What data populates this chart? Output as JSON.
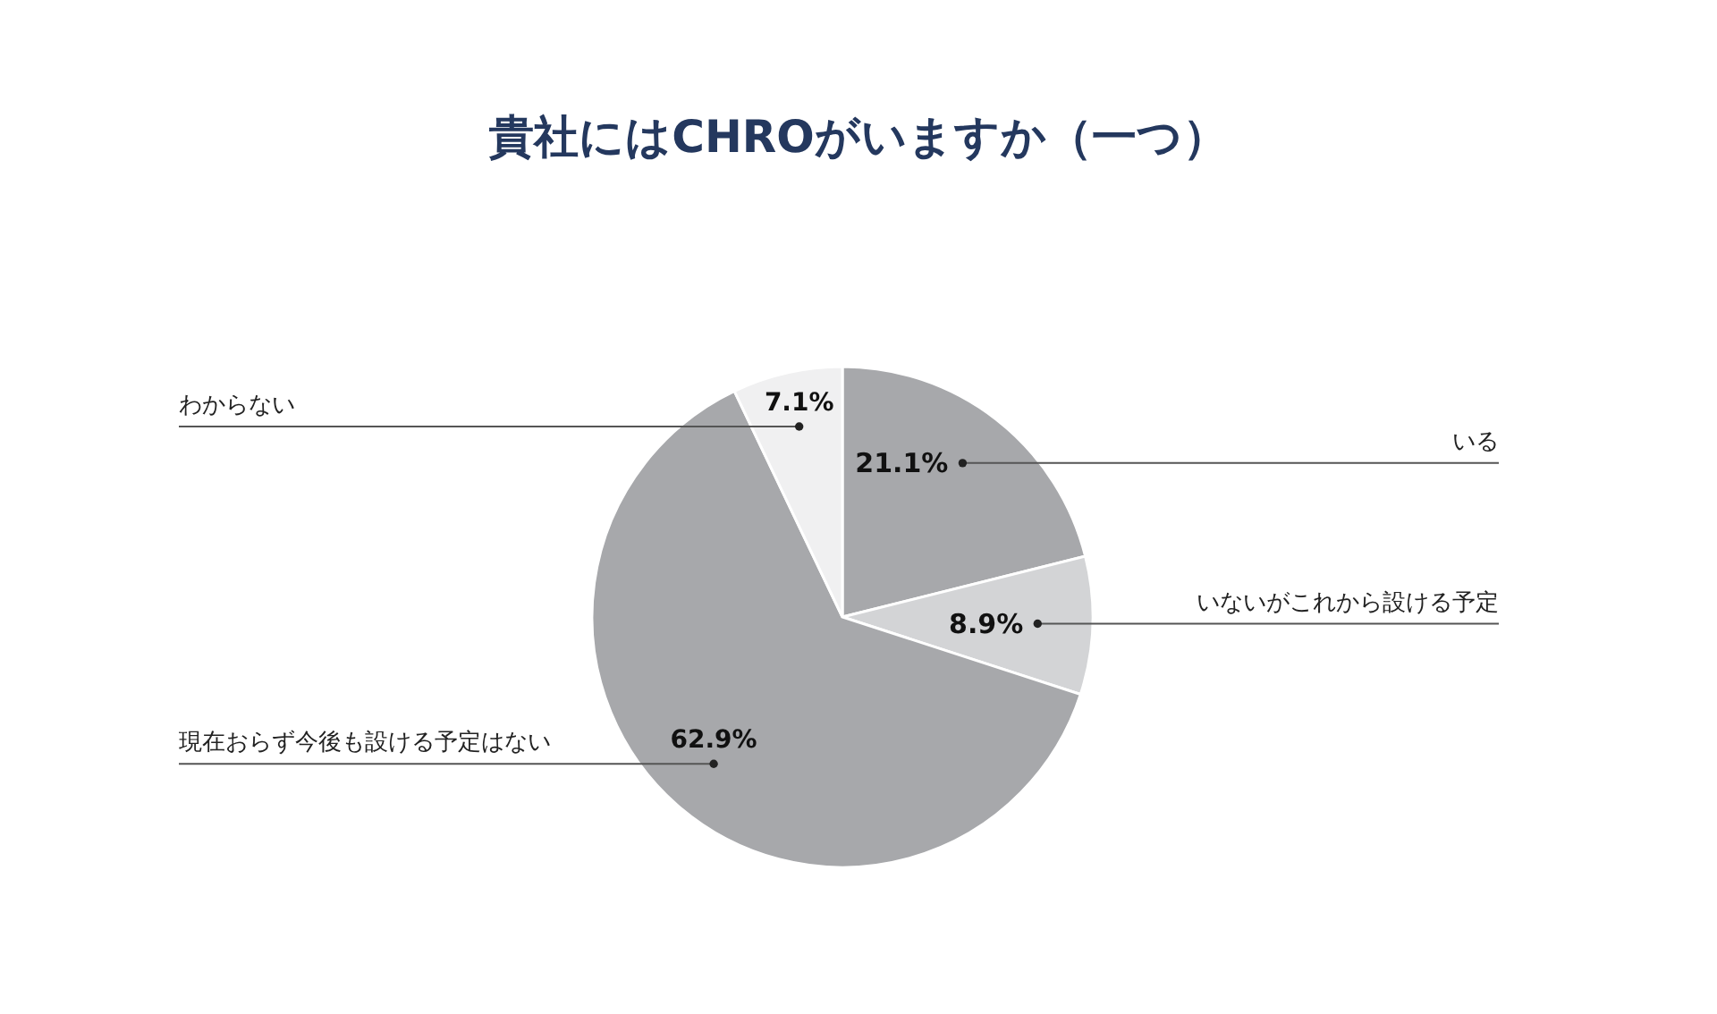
{
  "chart_data": {
    "type": "pie",
    "title": "貴社にはCHROがいますか（一つ）",
    "categories": [
      "いる",
      "いないがこれから設ける予定",
      "現在おらず今後も設ける予定はない",
      "わからない"
    ],
    "values": [
      21.1,
      8.9,
      62.9,
      7.1
    ],
    "colors": [
      "#a7a8ab",
      "#d3d4d6",
      "#a7a8ab",
      "#f0f0f1"
    ],
    "value_labels": [
      "21.1%",
      "8.9%",
      "62.9%",
      "7.1%"
    ],
    "legend": false
  }
}
